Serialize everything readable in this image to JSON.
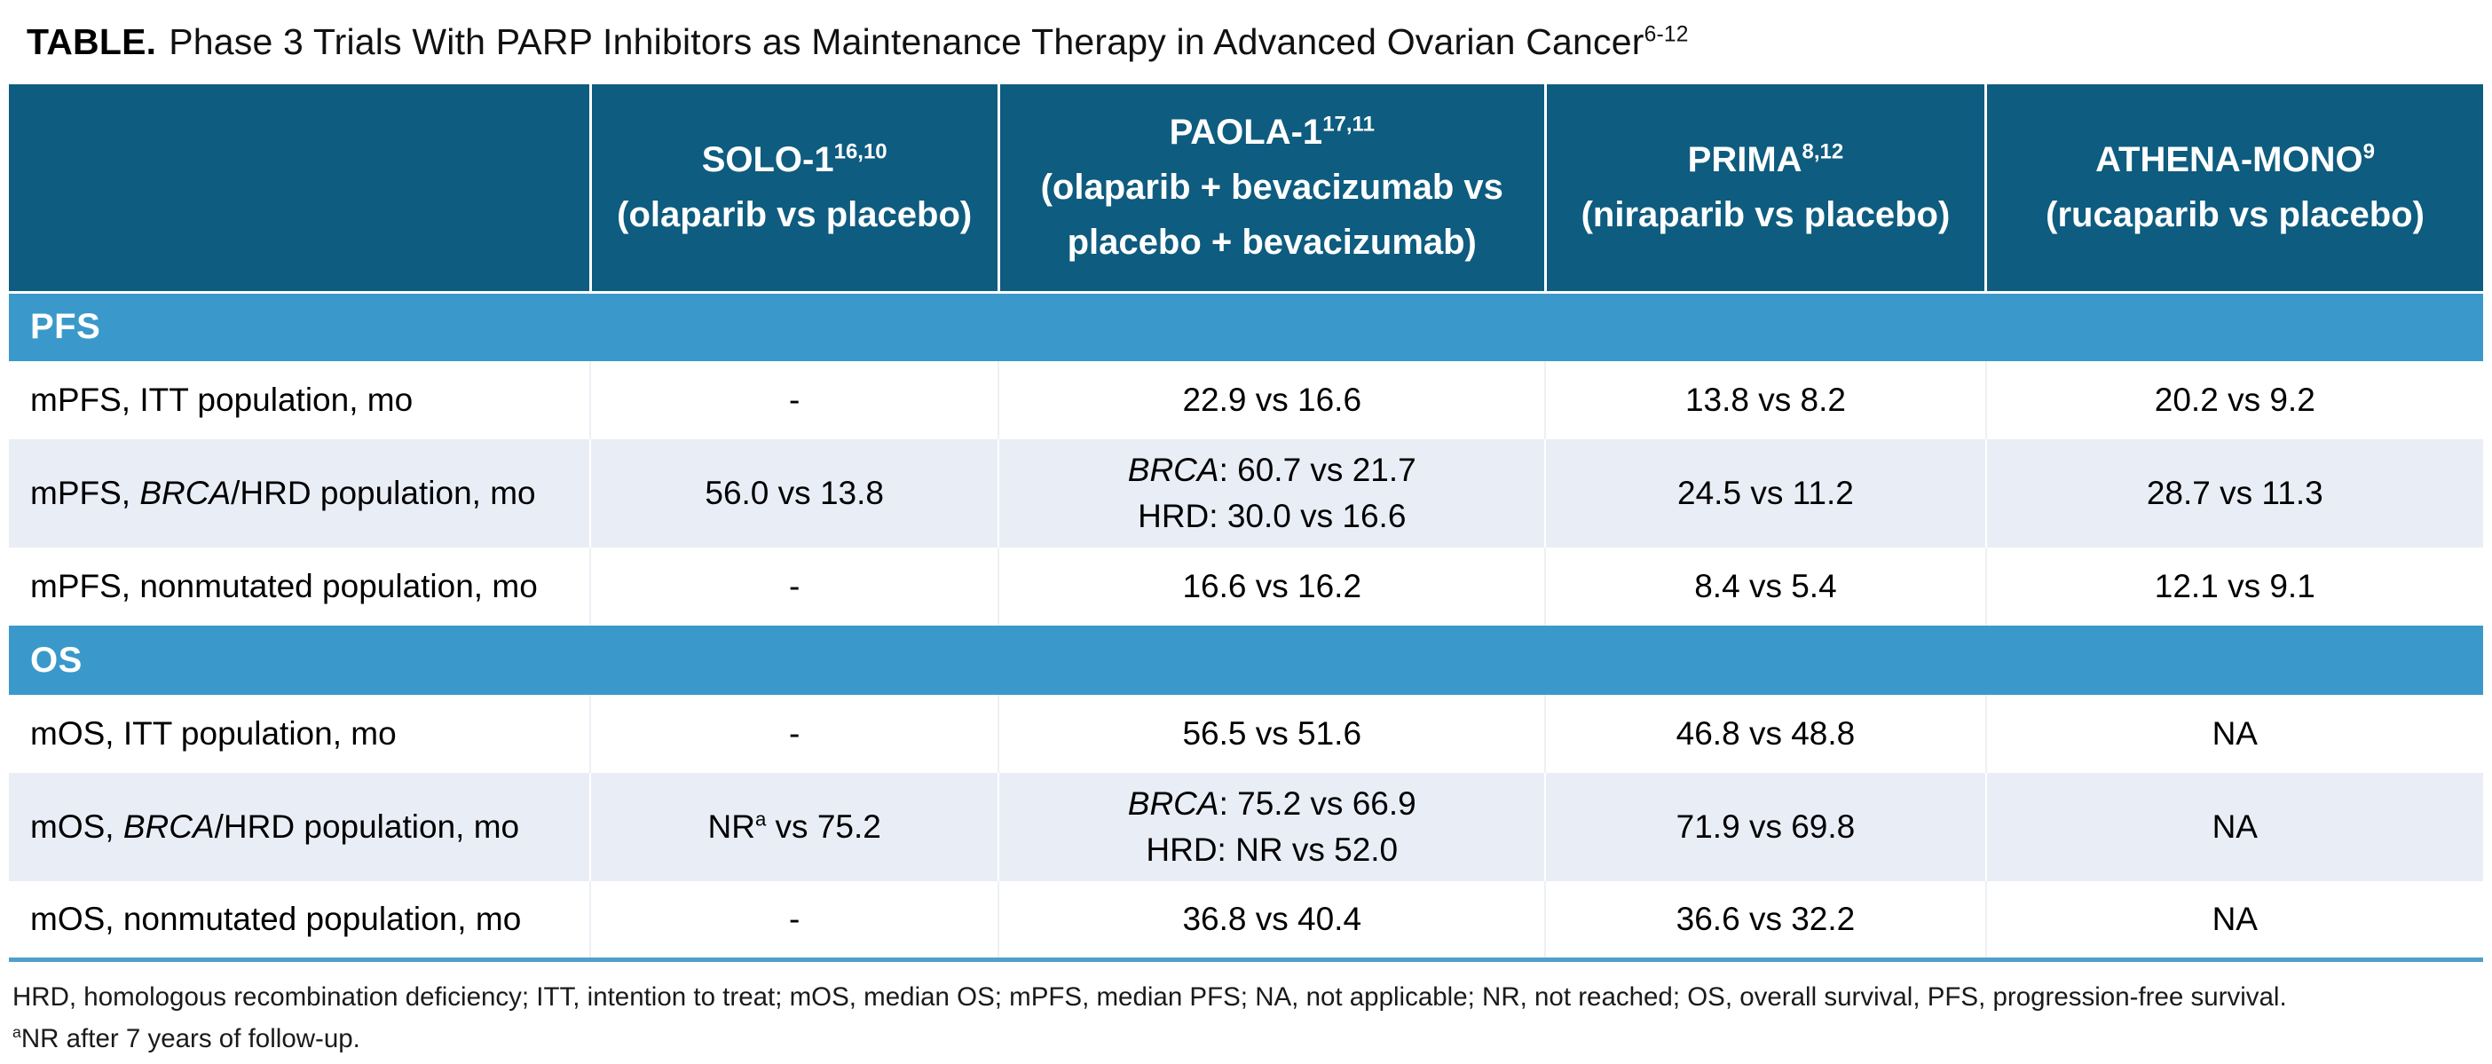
{
  "title": {
    "label": "TABLE.",
    "text": "Phase 3 Trials With PARP Inhibitors as Maintenance Therapy in Advanced Ovarian Cancer",
    "sup": "6-12"
  },
  "colors": {
    "header_bg": "#0E5C7F",
    "section_band_bg": "#3A99CA",
    "row_alt_bg": "#E9EDF6",
    "row_white_bg": "#FFFFFF",
    "bottom_border": "#4F9FC9",
    "header_text": "#FFFFFF"
  },
  "columns": [
    {
      "name": "SOLO-1",
      "sup": "16,10",
      "detail": "(olaparib vs placebo)"
    },
    {
      "name": "PAOLA-1",
      "sup": "17,11",
      "detail": "(olaparib + bevacizumab vs placebo + bevacizumab)"
    },
    {
      "name": "PRIMA",
      "sup": "8,12",
      "detail": "(niraparib vs placebo)"
    },
    {
      "name": "ATHENA-MONO",
      "sup": "9",
      "detail": "(rucaparib vs placebo)"
    }
  ],
  "sections": [
    {
      "label": "PFS",
      "rows": [
        {
          "label_pre": "mPFS, ITT population, mo",
          "solo1": "-",
          "paola1": "22.9 vs 16.6",
          "prima": "13.8 vs 8.2",
          "athena": "20.2 vs 9.2"
        },
        {
          "label_pre": "mPFS, ",
          "label_italic": "BRCA",
          "label_post": "/HRD population, mo",
          "solo1": "56.0 vs 13.8",
          "paola1_l1_italic": "BRCA",
          "paola1_l1_rest": ": 60.7 vs 21.7",
          "paola1_l2": "HRD: 30.0 vs 16.6",
          "prima": "24.5 vs 11.2",
          "athena": "28.7 vs 11.3"
        },
        {
          "label_pre": "mPFS, nonmutated population, mo",
          "solo1": "-",
          "paola1": "16.6 vs 16.2",
          "prima": "8.4 vs 5.4",
          "athena": "12.1 vs 9.1"
        }
      ]
    },
    {
      "label": "OS",
      "rows": [
        {
          "label_pre": "mOS, ITT population, mo",
          "solo1": "-",
          "paola1": "56.5 vs 51.6",
          "prima": "46.8 vs 48.8",
          "athena": "NA"
        },
        {
          "label_pre": "mOS, ",
          "label_italic": "BRCA",
          "label_post": "/HRD population, mo",
          "solo1_pre": "NR",
          "solo1_sup": "a",
          "solo1_post": " vs 75.2",
          "paola1_l1_italic": "BRCA",
          "paola1_l1_rest": ": 75.2 vs 66.9",
          "paola1_l2": "HRD: NR vs 52.0",
          "prima": "71.9 vs 69.8",
          "athena": "NA"
        },
        {
          "label_pre": "mOS, nonmutated population, mo",
          "solo1": "-",
          "paola1": "36.8 vs 40.4",
          "prima": "36.6 vs 32.2",
          "athena": "NA"
        }
      ]
    }
  ],
  "footnotes": {
    "abbreviations": "HRD, homologous recombination deficiency; ITT, intention to treat; mOS, median OS; mPFS, median PFS; NA, not applicable; NR, not reached; OS, overall survival, PFS, progression-free survival.",
    "note_sup": "a",
    "note_text": "NR after 7 years of follow-up."
  }
}
